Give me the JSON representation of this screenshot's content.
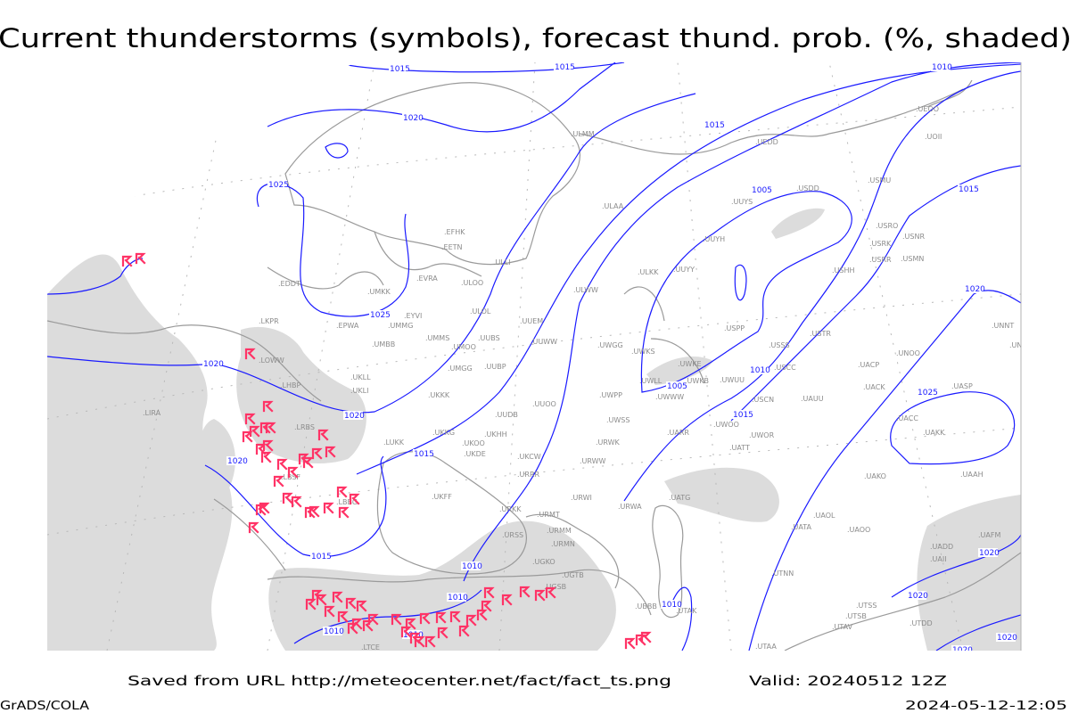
{
  "title": "Current thunderstorms (symbols), forecast thund. prob. (%, shaded)",
  "footer": {
    "source": "Saved from URL http://meteocenter.net/fact/fact_ts.png",
    "valid": "Valid: 20240512 12Z",
    "software": "GrADS/COLA",
    "generated": "2024-05-12-12:05"
  },
  "colors": {
    "isobar": "#1a1aff",
    "thunderstorm_symbol": "#ff3366",
    "probability_shade": "#dcdcdc",
    "coastline": "#9a9a9a",
    "station_label": "#8c8c8c"
  },
  "legend": {
    "symbol": "thunderstorm-symbol-icon"
  },
  "isobar_labels": [
    "1015",
    "1015",
    "1010",
    "1020",
    "1015",
    "1025",
    "1005",
    "1015",
    "1020",
    "1025",
    "1020",
    "1020",
    "1010",
    "1005",
    "1025",
    "1015",
    "1020",
    "1015",
    "1015",
    "1010",
    "1010",
    "1020",
    "1010",
    "1010",
    "1010",
    "1020",
    "1020",
    "1020"
  ],
  "stations": [
    "ULMM",
    "UEOO",
    "UOII",
    "UEDD",
    "USMU",
    "USDD",
    "UUYS",
    "ULAA",
    "EFHK",
    "EETN",
    "ULLI",
    "EVRA",
    "ULOO",
    "UMKK",
    "ULWW",
    "ULOL",
    "EYVI",
    "UMMG",
    "EPWA",
    "UUEM",
    "UMMS",
    "UMOO",
    "UUBS",
    "UUWW",
    "UMBB",
    "UWGG",
    "UWKS",
    "UKLL",
    "UMGG",
    "UUBP",
    "UWKE",
    "UWKB",
    "UWLL",
    "UKLI",
    "UKKK",
    "UWPP",
    "UWWW",
    "UUOO",
    "UUDB",
    "UWSS",
    "UKHH",
    "UKKG",
    "UKOO",
    "UARR",
    "LUKK",
    "URWK",
    "UKDE",
    "UKCW",
    "URWW",
    "USRO",
    "UUYH",
    "USRK",
    "USNR",
    "USRR",
    "USMN",
    "USHH",
    "ULKK",
    "UUYY",
    "USPP",
    "UNNT",
    "USTR",
    "USSS",
    "UNBB",
    "UNOO",
    "USCC",
    "UACP",
    "UWUU",
    "USCN",
    "UAUU",
    "UACK",
    "UASP",
    "UACC",
    "UWOO",
    "UWOR",
    "UAKK",
    "EDDT",
    "LKPR",
    "LOWW",
    "LHBP",
    "LIRA",
    "LBSF",
    "LBBG",
    "LRBS",
    "URRR",
    "URKK",
    "UKFF",
    "URWI",
    "URWA",
    "URSS",
    "URMT",
    "URMM",
    "URMN",
    "UGKO",
    "UGTB",
    "UGSB",
    "UBBB",
    "UTAK",
    "UTAA",
    "UTNN",
    "UATG",
    "UATT",
    "UATA",
    "UAOL",
    "UAOO",
    "UAKO",
    "UAAH",
    "UAFM",
    "UADD",
    "UAII",
    "UTSS",
    "UTSB",
    "UTDD",
    "UTAV",
    "LTCE"
  ]
}
